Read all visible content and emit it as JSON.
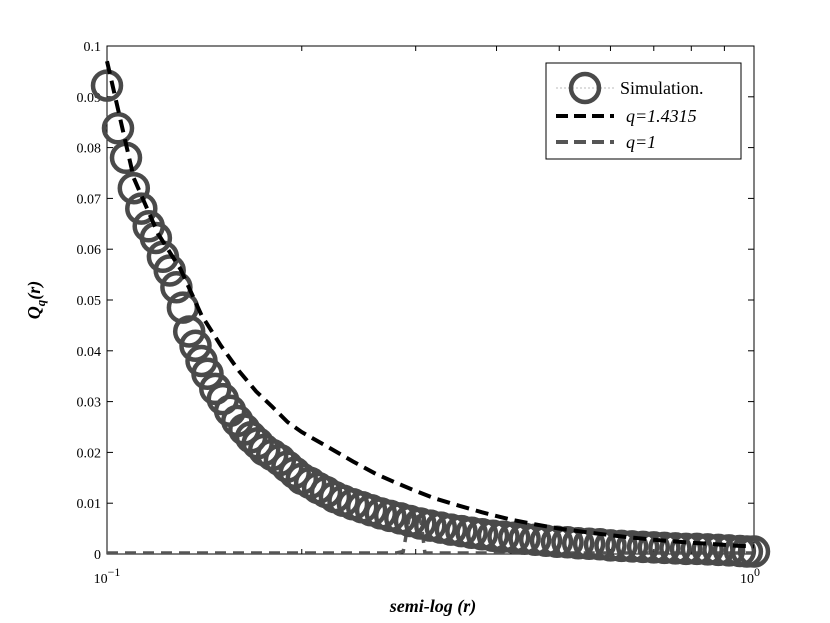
{
  "chart_data": {
    "type": "scatter",
    "xlabel": "semi-log (r)",
    "ylabel": "Q_q(r)",
    "xscale": "log",
    "xlim": [
      0.1,
      1
    ],
    "ylim": [
      0,
      0.1
    ],
    "x_tick_labels": [
      {
        "base": "10",
        "exp": "−1",
        "value": 0.1
      },
      {
        "base": "10",
        "exp": "0",
        "value": 1
      }
    ],
    "y_ticks": [
      0,
      0.01,
      0.02,
      0.03,
      0.04,
      0.05,
      0.06,
      0.07,
      0.08,
      0.09,
      0.1
    ],
    "y_tick_labels": [
      "0",
      "0.01",
      "0.02",
      "0.03",
      "0.04",
      "0.05",
      "0.06",
      "0.07",
      "0.08",
      "0.09",
      "0.1"
    ],
    "grid": false,
    "legend_position": "top-right",
    "series": [
      {
        "name": "Simulation.",
        "style": "circle-markers",
        "color": "#4a4a4a",
        "x": [
          0.1,
          0.104,
          0.107,
          0.11,
          0.113,
          0.116,
          0.119,
          0.122,
          0.125,
          0.128,
          0.131,
          0.134,
          0.137,
          0.14,
          0.143,
          0.147,
          0.151,
          0.155,
          0.159,
          0.163,
          0.167,
          0.171,
          0.175,
          0.18,
          0.185,
          0.19,
          0.195,
          0.2,
          0.206,
          0.212,
          0.218,
          0.225,
          0.232,
          0.24,
          0.248,
          0.256,
          0.265,
          0.274,
          0.284,
          0.294,
          0.305,
          0.316,
          0.328,
          0.34,
          0.353,
          0.366,
          0.38,
          0.395,
          0.41,
          0.426,
          0.442,
          0.459,
          0.477,
          0.496,
          0.515,
          0.535,
          0.556,
          0.578,
          0.6,
          0.624,
          0.648,
          0.674,
          0.7,
          0.727,
          0.756,
          0.785,
          0.816,
          0.848,
          0.881,
          0.915,
          0.951,
          0.975,
          1.0
        ],
        "y": [
          0.0922,
          0.0838,
          0.078,
          0.072,
          0.068,
          0.0645,
          0.0622,
          0.0585,
          0.0558,
          0.0525,
          0.0485,
          0.0438,
          0.041,
          0.038,
          0.0355,
          0.0325,
          0.0305,
          0.0282,
          0.0262,
          0.0245,
          0.023,
          0.0218,
          0.0205,
          0.0195,
          0.0185,
          0.0172,
          0.016,
          0.0148,
          0.014,
          0.013,
          0.0122,
          0.0112,
          0.0105,
          0.0098,
          0.0092,
          0.0086,
          0.008,
          0.0075,
          0.007,
          0.0065,
          0.006,
          0.0056,
          0.0052,
          0.0048,
          0.0045,
          0.0042,
          0.0039,
          0.0036,
          0.0034,
          0.0032,
          0.003,
          0.0028,
          0.0026,
          0.0024,
          0.0023,
          0.0021,
          0.002,
          0.0019,
          0.0017,
          0.0016,
          0.0015,
          0.0014,
          0.0013,
          0.0012,
          0.0011,
          0.001,
          0.001,
          0.0009,
          0.0008,
          0.0007,
          0.0006,
          0.0005,
          0.0005
        ]
      },
      {
        "name": "q=1.4315",
        "style": "dashed",
        "color": "#000000",
        "x": [
          0.1,
          0.11,
          0.12,
          0.13,
          0.14,
          0.15,
          0.16,
          0.17,
          0.18,
          0.19,
          0.2,
          0.22,
          0.24,
          0.26,
          0.28,
          0.3,
          0.32,
          0.35,
          0.38,
          0.42,
          0.46,
          0.5,
          0.55,
          0.6,
          0.65,
          0.7,
          0.75,
          0.8,
          0.85,
          0.9,
          0.95,
          1.0
        ],
        "y": [
          0.097,
          0.074,
          0.063,
          0.056,
          0.047,
          0.041,
          0.036,
          0.032,
          0.029,
          0.026,
          0.024,
          0.021,
          0.0182,
          0.0158,
          0.014,
          0.0124,
          0.011,
          0.0095,
          0.0082,
          0.0068,
          0.0058,
          0.005,
          0.0043,
          0.0037,
          0.0032,
          0.0028,
          0.0025,
          0.0022,
          0.002,
          0.0018,
          0.0016,
          0.0015
        ]
      },
      {
        "name": "q=1",
        "style": "dashed",
        "color": "#555555",
        "x": [
          0.1,
          0.28,
          0.287,
          0.293,
          0.3,
          0.306,
          0.31,
          1.0
        ],
        "y": [
          0.0002,
          0.0002,
          0.0005,
          0.007,
          0.0082,
          0.006,
          0.0002,
          0.0002
        ]
      }
    ]
  }
}
